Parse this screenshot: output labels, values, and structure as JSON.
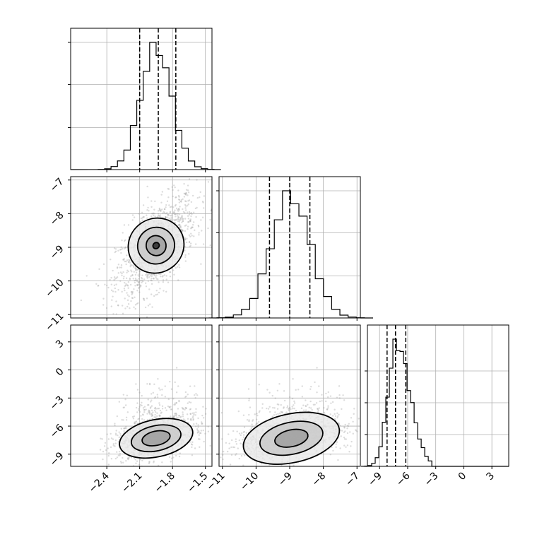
{
  "chart_data": {
    "type": "corner",
    "parameters": [
      {
        "ticks": [
          -2.4,
          -2.1,
          -1.8,
          -1.5
        ],
        "tick_labels": [
          "−2.4",
          "−2.1",
          "−1.8",
          "−1.5"
        ],
        "range": [
          -2.73,
          -1.44
        ],
        "quantiles": [
          -2.1,
          -1.93,
          -1.77
        ],
        "hist_mean": -1.95,
        "hist_sd": 0.14
      },
      {
        "ticks": [
          -11,
          -10,
          -9,
          -8,
          -7
        ],
        "tick_labels": [
          "−11",
          "−10",
          "−9",
          "−8",
          "−7"
        ],
        "range": [
          -11.1,
          -6.9
        ],
        "quantiles": [
          -9.6,
          -9.0,
          -8.4
        ],
        "hist_mean": -8.97,
        "hist_sd": 0.58
      },
      {
        "ticks": [
          -9,
          -6,
          -3,
          0,
          3
        ],
        "tick_labels": [
          "−9",
          "−6",
          "−3",
          "0",
          "3"
        ],
        "range": [
          -10.3,
          4.8
        ],
        "quantiles": [
          -8.2,
          -7.3,
          -6.2
        ],
        "hist_mean": -7.2,
        "hist_sd": 0.9
      }
    ],
    "histograms": [
      {
        "param": 0,
        "y_ticks": [
          0.33,
          0.67,
          1.0
        ]
      },
      {
        "param": 1,
        "y_ticks": [
          0.33,
          0.67,
          1.0
        ]
      },
      {
        "param": 2,
        "y_ticks": [
          0.25,
          0.5,
          0.75
        ]
      }
    ],
    "scatter_panels": [
      {
        "x_param": 0,
        "y_param": 1,
        "center": [
          -1.95,
          -8.95
        ],
        "contours": [
          {
            "rx": 0.09,
            "ry": 0.6,
            "tilt": 38
          },
          {
            "rx": 0.17,
            "ry": 1.08,
            "tilt": 38
          },
          {
            "rx": 0.26,
            "ry": 1.6,
            "tilt": 38
          },
          {
            "rx": 0.03,
            "ry": 0.18,
            "tilt": 38
          }
        ]
      },
      {
        "x_param": 0,
        "y_param": 2,
        "center": [
          -1.95,
          -7.3
        ],
        "contours": [
          {
            "rx": 0.13,
            "ry": 0.8,
            "tilt": 12
          },
          {
            "rx": 0.23,
            "ry": 1.5,
            "tilt": 12
          },
          {
            "rx": 0.34,
            "ry": 2.2,
            "tilt": 12
          }
        ]
      },
      {
        "x_param": 1,
        "y_param": 2,
        "center": [
          -8.95,
          -7.3
        ],
        "contours": [
          {
            "rx": 0.5,
            "ry": 0.8,
            "tilt": 12
          },
          {
            "rx": 0.95,
            "ry": 1.5,
            "tilt": 12
          },
          {
            "rx": 1.45,
            "ry": 2.2,
            "tilt": 12
          }
        ]
      }
    ]
  }
}
